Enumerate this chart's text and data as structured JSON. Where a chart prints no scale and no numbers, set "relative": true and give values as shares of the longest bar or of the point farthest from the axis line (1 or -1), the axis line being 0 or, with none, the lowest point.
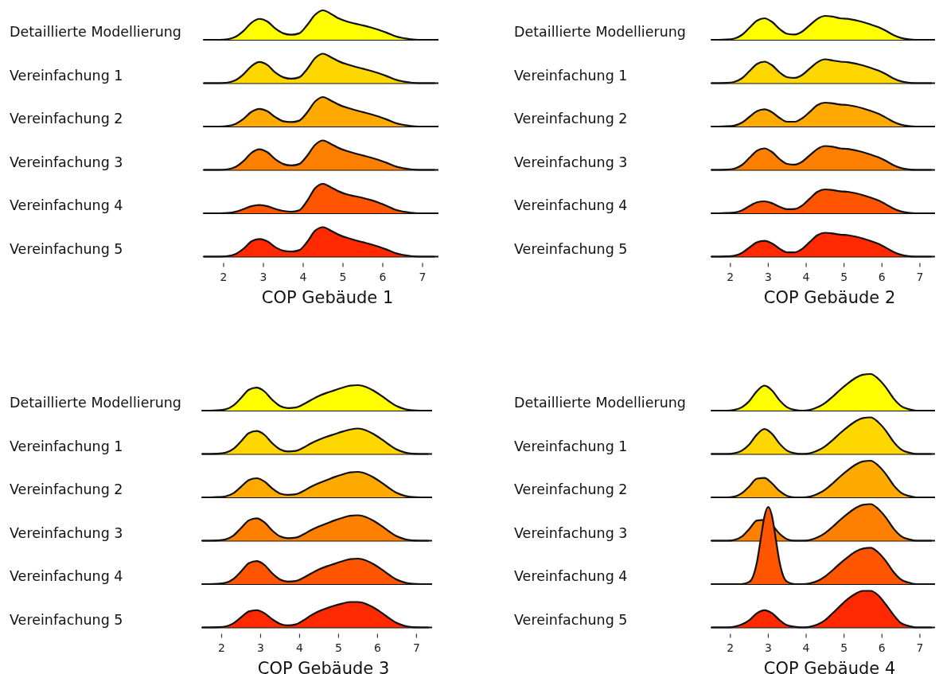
{
  "chart_data": [
    {
      "type": "area",
      "relative": true,
      "xlim": [
        1.5,
        7.4
      ],
      "x": [
        1.5,
        1.7,
        1.9,
        2.1,
        2.3,
        2.5,
        2.7,
        2.9,
        3.1,
        3.3,
        3.5,
        3.7,
        3.9,
        4.1,
        4.3,
        4.5,
        4.7,
        4.9,
        5.1,
        5.3,
        5.5,
        5.7,
        5.9,
        6.1,
        6.3,
        6.5,
        6.7,
        6.9,
        7.1,
        7.3
      ],
      "series": [
        {
          "name": "Detaillierte Modellierung",
          "color": "#ffff00",
          "values": [
            0,
            0,
            0,
            0.02,
            0.1,
            0.3,
            0.58,
            0.71,
            0.62,
            0.38,
            0.22,
            0.17,
            0.22,
            0.5,
            0.85,
            1.0,
            0.88,
            0.72,
            0.62,
            0.55,
            0.49,
            0.42,
            0.34,
            0.24,
            0.13,
            0.06,
            0.02,
            0,
            0,
            0
          ]
        }
      ]
    },
    {
      "type": "area",
      "relative": true,
      "xlim": [
        1.5,
        7.4
      ],
      "x": [
        1.5,
        1.7,
        1.9,
        2.1,
        2.3,
        2.5,
        2.7,
        2.9,
        3.1,
        3.3,
        3.5,
        3.7,
        3.9,
        4.1,
        4.3,
        4.5,
        4.7,
        4.9,
        5.1,
        5.3,
        5.5,
        5.7,
        5.9,
        6.1,
        6.3,
        6.5,
        6.7,
        6.9,
        7.1,
        7.3
      ],
      "series": [
        {
          "name": "Vereinfachung 1",
          "color": "#ffd700",
          "values": [
            0,
            0,
            0,
            0.02,
            0.1,
            0.3,
            0.58,
            0.72,
            0.62,
            0.36,
            0.2,
            0.15,
            0.2,
            0.48,
            0.85,
            1.0,
            0.88,
            0.74,
            0.64,
            0.56,
            0.49,
            0.42,
            0.34,
            0.24,
            0.13,
            0.06,
            0.02,
            0,
            0,
            0
          ]
        }
      ]
    },
    {
      "type": "area",
      "relative": true,
      "xlim": [
        1.5,
        7.4
      ],
      "x": [
        1.5,
        1.7,
        1.9,
        2.1,
        2.3,
        2.5,
        2.7,
        2.9,
        3.1,
        3.3,
        3.5,
        3.7,
        3.9,
        4.1,
        4.3,
        4.5,
        4.7,
        4.9,
        5.1,
        5.3,
        5.5,
        5.7,
        5.9,
        6.1,
        6.3,
        6.5,
        6.7,
        6.9,
        7.1,
        7.3
      ],
      "series": [
        {
          "name": "Vereinfachung 2",
          "color": "#ffaa00",
          "values": [
            0,
            0,
            0,
            0.02,
            0.09,
            0.26,
            0.5,
            0.6,
            0.52,
            0.32,
            0.18,
            0.15,
            0.2,
            0.48,
            0.85,
            1.0,
            0.88,
            0.74,
            0.64,
            0.56,
            0.49,
            0.42,
            0.34,
            0.24,
            0.13,
            0.06,
            0.02,
            0,
            0,
            0
          ]
        }
      ]
    },
    {
      "type": "area",
      "relative": true,
      "xlim": [
        1.5,
        7.4
      ],
      "x": [
        1.5,
        1.7,
        1.9,
        2.1,
        2.3,
        2.5,
        2.7,
        2.9,
        3.1,
        3.3,
        3.5,
        3.7,
        3.9,
        4.1,
        4.3,
        4.5,
        4.7,
        4.9,
        5.1,
        5.3,
        5.5,
        5.7,
        5.9,
        6.1,
        6.3,
        6.5,
        6.7,
        6.9,
        7.1,
        7.3
      ],
      "series": [
        {
          "name": "Vereinfachung 3",
          "color": "#ff8000",
          "values": [
            0,
            0,
            0,
            0.02,
            0.1,
            0.3,
            0.58,
            0.7,
            0.6,
            0.36,
            0.2,
            0.15,
            0.2,
            0.48,
            0.85,
            1.0,
            0.88,
            0.74,
            0.64,
            0.56,
            0.49,
            0.42,
            0.34,
            0.24,
            0.13,
            0.06,
            0.02,
            0,
            0,
            0
          ]
        }
      ]
    },
    {
      "type": "area",
      "relative": true,
      "xlim": [
        1.5,
        7.4
      ],
      "x": [
        1.5,
        1.7,
        1.9,
        2.1,
        2.3,
        2.5,
        2.7,
        2.9,
        3.1,
        3.3,
        3.5,
        3.7,
        3.9,
        4.1,
        4.3,
        4.5,
        4.7,
        4.9,
        5.1,
        5.3,
        5.5,
        5.7,
        5.9,
        6.1,
        6.3,
        6.5,
        6.7,
        6.9,
        7.1,
        7.3
      ],
      "series": [
        {
          "name": "Vereinfachung 4",
          "color": "#ff5500",
          "values": [
            0,
            0,
            0,
            0.01,
            0.05,
            0.14,
            0.24,
            0.28,
            0.24,
            0.15,
            0.08,
            0.05,
            0.1,
            0.42,
            0.85,
            1.0,
            0.88,
            0.74,
            0.64,
            0.58,
            0.52,
            0.45,
            0.36,
            0.25,
            0.13,
            0.06,
            0.02,
            0,
            0,
            0
          ]
        }
      ]
    },
    {
      "type": "area",
      "relative": true,
      "xlabel": "COP Gebäude 1",
      "xlim": [
        1.5,
        7.4
      ],
      "xticks": [
        2,
        3,
        4,
        5,
        6,
        7
      ],
      "x": [
        1.5,
        1.7,
        1.9,
        2.1,
        2.3,
        2.5,
        2.7,
        2.9,
        3.1,
        3.3,
        3.5,
        3.7,
        3.9,
        4.1,
        4.3,
        4.5,
        4.7,
        4.9,
        5.1,
        5.3,
        5.5,
        5.7,
        5.9,
        6.1,
        6.3,
        6.5,
        6.7,
        6.9,
        7.1,
        7.3
      ],
      "series": [
        {
          "name": "Vereinfachung 5",
          "color": "#ff2a00",
          "values": [
            0,
            0,
            0,
            0.02,
            0.09,
            0.27,
            0.52,
            0.6,
            0.52,
            0.32,
            0.2,
            0.17,
            0.22,
            0.5,
            0.88,
            1.0,
            0.88,
            0.74,
            0.64,
            0.56,
            0.49,
            0.42,
            0.34,
            0.24,
            0.13,
            0.06,
            0.02,
            0,
            0,
            0
          ]
        }
      ]
    },
    {
      "type": "area",
      "relative": true,
      "xlim": [
        1.5,
        7.4
      ],
      "x": [
        1.5,
        1.7,
        1.9,
        2.1,
        2.3,
        2.5,
        2.7,
        2.9,
        3.1,
        3.3,
        3.5,
        3.7,
        3.9,
        4.1,
        4.3,
        4.5,
        4.7,
        4.9,
        5.1,
        5.3,
        5.5,
        5.7,
        5.9,
        6.1,
        6.3,
        6.5,
        6.7,
        6.9,
        7.1,
        7.3
      ],
      "series": [
        {
          "name": "Detaillierte Modellierung",
          "color": "#ffff00",
          "values": [
            0,
            0,
            0.01,
            0.05,
            0.2,
            0.5,
            0.8,
            0.9,
            0.75,
            0.45,
            0.25,
            0.22,
            0.35,
            0.62,
            0.88,
            1.0,
            0.97,
            0.9,
            0.88,
            0.82,
            0.74,
            0.64,
            0.53,
            0.38,
            0.2,
            0.08,
            0.02,
            0,
            0,
            0
          ]
        }
      ]
    },
    {
      "type": "area",
      "relative": true,
      "xlim": [
        1.5,
        7.4
      ],
      "x": [
        1.5,
        1.7,
        1.9,
        2.1,
        2.3,
        2.5,
        2.7,
        2.9,
        3.1,
        3.3,
        3.5,
        3.7,
        3.9,
        4.1,
        4.3,
        4.5,
        4.7,
        4.9,
        5.1,
        5.3,
        5.5,
        5.7,
        5.9,
        6.1,
        6.3,
        6.5,
        6.7,
        6.9,
        7.1,
        7.3
      ],
      "series": [
        {
          "name": "Vereinfachung 1",
          "color": "#ffd700",
          "values": [
            0,
            0,
            0.01,
            0.05,
            0.2,
            0.5,
            0.8,
            0.9,
            0.75,
            0.45,
            0.25,
            0.22,
            0.35,
            0.62,
            0.88,
            1.0,
            0.95,
            0.9,
            0.88,
            0.82,
            0.74,
            0.64,
            0.53,
            0.38,
            0.2,
            0.08,
            0.02,
            0,
            0,
            0
          ]
        }
      ]
    },
    {
      "type": "area",
      "relative": true,
      "xlim": [
        1.5,
        7.4
      ],
      "x": [
        1.5,
        1.7,
        1.9,
        2.1,
        2.3,
        2.5,
        2.7,
        2.9,
        3.1,
        3.3,
        3.5,
        3.7,
        3.9,
        4.1,
        4.3,
        4.5,
        4.7,
        4.9,
        5.1,
        5.3,
        5.5,
        5.7,
        5.9,
        6.1,
        6.3,
        6.5,
        6.7,
        6.9,
        7.1,
        7.3
      ],
      "series": [
        {
          "name": "Vereinfachung 2",
          "color": "#ffaa00",
          "values": [
            0,
            0,
            0.01,
            0.04,
            0.16,
            0.4,
            0.64,
            0.72,
            0.6,
            0.36,
            0.2,
            0.2,
            0.35,
            0.62,
            0.9,
            1.0,
            0.97,
            0.92,
            0.9,
            0.84,
            0.76,
            0.66,
            0.54,
            0.38,
            0.2,
            0.08,
            0.02,
            0,
            0,
            0
          ]
        }
      ]
    },
    {
      "type": "area",
      "relative": true,
      "xlim": [
        1.5,
        7.4
      ],
      "x": [
        1.5,
        1.7,
        1.9,
        2.1,
        2.3,
        2.5,
        2.7,
        2.9,
        3.1,
        3.3,
        3.5,
        3.7,
        3.9,
        4.1,
        4.3,
        4.5,
        4.7,
        4.9,
        5.1,
        5.3,
        5.5,
        5.7,
        5.9,
        6.1,
        6.3,
        6.5,
        6.7,
        6.9,
        7.1,
        7.3
      ],
      "series": [
        {
          "name": "Vereinfachung 3",
          "color": "#ff8000",
          "values": [
            0,
            0,
            0.01,
            0.05,
            0.2,
            0.5,
            0.8,
            0.9,
            0.75,
            0.45,
            0.25,
            0.22,
            0.35,
            0.62,
            0.88,
            1.0,
            0.97,
            0.9,
            0.88,
            0.82,
            0.74,
            0.64,
            0.53,
            0.38,
            0.2,
            0.08,
            0.02,
            0,
            0,
            0
          ]
        }
      ]
    },
    {
      "type": "area",
      "relative": true,
      "xlim": [
        1.5,
        7.4
      ],
      "x": [
        1.5,
        1.7,
        1.9,
        2.1,
        2.3,
        2.5,
        2.7,
        2.9,
        3.1,
        3.3,
        3.5,
        3.7,
        3.9,
        4.1,
        4.3,
        4.5,
        4.7,
        4.9,
        5.1,
        5.3,
        5.5,
        5.7,
        5.9,
        6.1,
        6.3,
        6.5,
        6.7,
        6.9,
        7.1,
        7.3
      ],
      "series": [
        {
          "name": "Vereinfachung 4",
          "color": "#ff5500",
          "values": [
            0,
            0,
            0.01,
            0.03,
            0.12,
            0.3,
            0.46,
            0.5,
            0.42,
            0.27,
            0.17,
            0.18,
            0.33,
            0.62,
            0.9,
            1.0,
            0.97,
            0.92,
            0.9,
            0.84,
            0.76,
            0.66,
            0.54,
            0.38,
            0.2,
            0.08,
            0.02,
            0,
            0,
            0
          ]
        }
      ]
    },
    {
      "type": "area",
      "relative": true,
      "xlabel": "COP Gebäude 2",
      "xlim": [
        1.5,
        7.4
      ],
      "xticks": [
        2,
        3,
        4,
        5,
        6,
        7
      ],
      "x": [
        1.5,
        1.7,
        1.9,
        2.1,
        2.3,
        2.5,
        2.7,
        2.9,
        3.1,
        3.3,
        3.5,
        3.7,
        3.9,
        4.1,
        4.3,
        4.5,
        4.7,
        4.9,
        5.1,
        5.3,
        5.5,
        5.7,
        5.9,
        6.1,
        6.3,
        6.5,
        6.7,
        6.9,
        7.1,
        7.3
      ],
      "series": [
        {
          "name": "Vereinfachung 5",
          "color": "#ff2a00",
          "values": [
            0,
            0,
            0.01,
            0.04,
            0.15,
            0.38,
            0.6,
            0.66,
            0.55,
            0.33,
            0.18,
            0.18,
            0.33,
            0.62,
            0.9,
            1.0,
            0.97,
            0.92,
            0.9,
            0.84,
            0.76,
            0.66,
            0.54,
            0.38,
            0.2,
            0.08,
            0.02,
            0,
            0,
            0
          ]
        }
      ]
    },
    {
      "type": "area",
      "relative": true,
      "xlim": [
        1.5,
        7.4
      ],
      "x": [
        1.5,
        1.7,
        1.9,
        2.1,
        2.3,
        2.5,
        2.7,
        2.9,
        3.1,
        3.3,
        3.5,
        3.7,
        3.9,
        4.1,
        4.3,
        4.5,
        4.7,
        4.9,
        5.1,
        5.3,
        5.5,
        5.7,
        5.9,
        6.1,
        6.3,
        6.5,
        6.7,
        6.9,
        7.1,
        7.3
      ],
      "series": [
        {
          "name": "Detaillierte Modellierung",
          "color": "#ffff00",
          "values": [
            0,
            0,
            0.01,
            0.05,
            0.2,
            0.5,
            0.82,
            0.9,
            0.75,
            0.42,
            0.18,
            0.1,
            0.12,
            0.25,
            0.42,
            0.58,
            0.7,
            0.8,
            0.9,
            0.98,
            1.0,
            0.93,
            0.78,
            0.58,
            0.36,
            0.17,
            0.06,
            0.01,
            0,
            0
          ]
        }
      ]
    },
    {
      "type": "area",
      "relative": true,
      "xlim": [
        1.5,
        7.4
      ],
      "x": [
        1.5,
        1.7,
        1.9,
        2.1,
        2.3,
        2.5,
        2.7,
        2.9,
        3.1,
        3.3,
        3.5,
        3.7,
        3.9,
        4.1,
        4.3,
        4.5,
        4.7,
        4.9,
        5.1,
        5.3,
        5.5,
        5.7,
        5.9,
        6.1,
        6.3,
        6.5,
        6.7,
        6.9,
        7.1,
        7.3
      ],
      "series": [
        {
          "name": "Vereinfachung 1",
          "color": "#ffd700",
          "values": [
            0,
            0,
            0.01,
            0.05,
            0.2,
            0.5,
            0.82,
            0.9,
            0.75,
            0.42,
            0.18,
            0.1,
            0.12,
            0.25,
            0.42,
            0.56,
            0.68,
            0.78,
            0.88,
            0.96,
            1.0,
            0.93,
            0.78,
            0.58,
            0.36,
            0.17,
            0.06,
            0.01,
            0,
            0
          ]
        }
      ]
    },
    {
      "type": "area",
      "relative": true,
      "xlim": [
        1.5,
        7.4
      ],
      "x": [
        1.5,
        1.7,
        1.9,
        2.1,
        2.3,
        2.5,
        2.7,
        2.9,
        3.1,
        3.3,
        3.5,
        3.7,
        3.9,
        4.1,
        4.3,
        4.5,
        4.7,
        4.9,
        5.1,
        5.3,
        5.5,
        5.7,
        5.9,
        6.1,
        6.3,
        6.5,
        6.7,
        6.9,
        7.1,
        7.3
      ],
      "series": [
        {
          "name": "Vereinfachung 2",
          "color": "#ffaa00",
          "values": [
            0,
            0,
            0.01,
            0.04,
            0.16,
            0.42,
            0.68,
            0.75,
            0.62,
            0.35,
            0.15,
            0.1,
            0.12,
            0.25,
            0.42,
            0.56,
            0.68,
            0.8,
            0.9,
            0.98,
            1.0,
            0.93,
            0.78,
            0.58,
            0.36,
            0.17,
            0.06,
            0.01,
            0,
            0
          ]
        }
      ]
    },
    {
      "type": "area",
      "relative": true,
      "xlim": [
        1.5,
        7.4
      ],
      "x": [
        1.5,
        1.7,
        1.9,
        2.1,
        2.3,
        2.5,
        2.7,
        2.9,
        3.1,
        3.3,
        3.5,
        3.7,
        3.9,
        4.1,
        4.3,
        4.5,
        4.7,
        4.9,
        5.1,
        5.3,
        5.5,
        5.7,
        5.9,
        6.1,
        6.3,
        6.5,
        6.7,
        6.9,
        7.1,
        7.3
      ],
      "series": [
        {
          "name": "Vereinfachung 3",
          "color": "#ff8000",
          "values": [
            0,
            0,
            0.01,
            0.05,
            0.2,
            0.5,
            0.8,
            0.88,
            0.72,
            0.4,
            0.17,
            0.1,
            0.12,
            0.25,
            0.42,
            0.56,
            0.68,
            0.8,
            0.9,
            0.98,
            1.0,
            0.93,
            0.78,
            0.58,
            0.36,
            0.17,
            0.06,
            0.01,
            0,
            0
          ]
        }
      ]
    },
    {
      "type": "area",
      "relative": true,
      "xlim": [
        1.5,
        7.4
      ],
      "x": [
        1.5,
        1.7,
        1.9,
        2.1,
        2.3,
        2.5,
        2.7,
        2.9,
        3.1,
        3.3,
        3.5,
        3.7,
        3.9,
        4.1,
        4.3,
        4.5,
        4.7,
        4.9,
        5.1,
        5.3,
        5.5,
        5.7,
        5.9,
        6.1,
        6.3,
        6.5,
        6.7,
        6.9,
        7.1,
        7.3
      ],
      "series": [
        {
          "name": "Vereinfachung 4",
          "color": "#ff5500",
          "values": [
            0,
            0,
            0.01,
            0.05,
            0.2,
            0.5,
            0.82,
            0.9,
            0.75,
            0.42,
            0.18,
            0.1,
            0.12,
            0.25,
            0.42,
            0.58,
            0.7,
            0.8,
            0.9,
            0.98,
            1.0,
            0.93,
            0.78,
            0.58,
            0.36,
            0.17,
            0.06,
            0.01,
            0,
            0
          ]
        }
      ]
    },
    {
      "type": "area",
      "relative": true,
      "xlabel": "COP Gebäude 3",
      "xlim": [
        1.5,
        7.4
      ],
      "xticks": [
        2,
        3,
        4,
        5,
        6,
        7
      ],
      "x": [
        1.5,
        1.7,
        1.9,
        2.1,
        2.3,
        2.5,
        2.7,
        2.9,
        3.1,
        3.3,
        3.5,
        3.7,
        3.9,
        4.1,
        4.3,
        4.5,
        4.7,
        4.9,
        5.1,
        5.3,
        5.5,
        5.7,
        5.9,
        6.1,
        6.3,
        6.5,
        6.7,
        6.9,
        7.1,
        7.3
      ],
      "series": [
        {
          "name": "Vereinfachung 5",
          "color": "#ff2a00",
          "values": [
            0,
            0,
            0.01,
            0.04,
            0.16,
            0.4,
            0.63,
            0.68,
            0.56,
            0.32,
            0.14,
            0.08,
            0.12,
            0.28,
            0.48,
            0.64,
            0.76,
            0.86,
            0.94,
            1.0,
            1.0,
            0.93,
            0.78,
            0.58,
            0.36,
            0.17,
            0.06,
            0.01,
            0,
            0
          ]
        }
      ]
    },
    {
      "type": "area",
      "relative": true,
      "xlim": [
        1.5,
        7.4
      ],
      "x": [
        1.5,
        1.7,
        1.9,
        2.1,
        2.3,
        2.5,
        2.7,
        2.9,
        3.1,
        3.3,
        3.5,
        3.7,
        3.9,
        4.1,
        4.3,
        4.5,
        4.7,
        4.9,
        5.1,
        5.3,
        5.5,
        5.7,
        5.9,
        6.1,
        6.3,
        6.5,
        6.7,
        6.9,
        7.1,
        7.3
      ],
      "series": [
        {
          "name": "Detaillierte Modellierung",
          "color": "#ffff00",
          "values": [
            0,
            0,
            0,
            0.02,
            0.09,
            0.26,
            0.53,
            0.68,
            0.55,
            0.28,
            0.09,
            0.02,
            0,
            0.02,
            0.09,
            0.21,
            0.38,
            0.57,
            0.74,
            0.89,
            0.98,
            1.0,
            0.87,
            0.64,
            0.34,
            0.13,
            0.04,
            0,
            0,
            0
          ]
        }
      ]
    },
    {
      "type": "area",
      "relative": true,
      "xlim": [
        1.5,
        7.4
      ],
      "x": [
        1.5,
        1.7,
        1.9,
        2.1,
        2.3,
        2.5,
        2.7,
        2.9,
        3.1,
        3.3,
        3.5,
        3.7,
        3.9,
        4.1,
        4.3,
        4.5,
        4.7,
        4.9,
        5.1,
        5.3,
        5.5,
        5.7,
        5.9,
        6.1,
        6.3,
        6.5,
        6.7,
        6.9,
        7.1,
        7.3
      ],
      "series": [
        {
          "name": "Vereinfachung 1",
          "color": "#ffd700",
          "values": [
            0,
            0,
            0,
            0.02,
            0.09,
            0.26,
            0.53,
            0.68,
            0.55,
            0.28,
            0.09,
            0.02,
            0,
            0.02,
            0.09,
            0.21,
            0.38,
            0.57,
            0.74,
            0.89,
            0.98,
            1.0,
            0.87,
            0.64,
            0.34,
            0.13,
            0.04,
            0,
            0,
            0
          ]
        }
      ]
    },
    {
      "type": "area",
      "relative": true,
      "xlim": [
        1.5,
        7.4
      ],
      "x": [
        1.5,
        1.7,
        1.9,
        2.1,
        2.3,
        2.5,
        2.7,
        2.9,
        3.1,
        3.3,
        3.5,
        3.7,
        3.9,
        4.1,
        4.3,
        4.5,
        4.7,
        4.9,
        5.1,
        5.3,
        5.5,
        5.7,
        5.9,
        6.1,
        6.3,
        6.5,
        6.7,
        6.9,
        7.1,
        7.3
      ],
      "series": [
        {
          "name": "Vereinfachung 2",
          "color": "#ffaa00",
          "values": [
            0,
            0,
            0,
            0.02,
            0.11,
            0.3,
            0.51,
            0.53,
            0.38,
            0.17,
            0.04,
            0,
            0,
            0.02,
            0.09,
            0.21,
            0.38,
            0.57,
            0.74,
            0.89,
            0.98,
            1.0,
            0.87,
            0.64,
            0.34,
            0.13,
            0.04,
            0,
            0,
            0
          ]
        }
      ]
    },
    {
      "type": "area",
      "relative": true,
      "xlim": [
        1.5,
        7.4
      ],
      "x": [
        1.5,
        1.7,
        1.9,
        2.1,
        2.3,
        2.5,
        2.7,
        2.9,
        3.1,
        3.3,
        3.5,
        3.7,
        3.9,
        4.1,
        4.3,
        4.5,
        4.7,
        4.9,
        5.1,
        5.3,
        5.5,
        5.7,
        5.9,
        6.1,
        6.3,
        6.5,
        6.7,
        6.9,
        7.1,
        7.3
      ],
      "series": [
        {
          "name": "Vereinfachung 3",
          "color": "#ff8000",
          "values": [
            0,
            0,
            0,
            0.02,
            0.11,
            0.32,
            0.55,
            0.57,
            0.43,
            0.19,
            0.04,
            0,
            0,
            0.02,
            0.09,
            0.21,
            0.38,
            0.57,
            0.74,
            0.89,
            0.98,
            1.0,
            0.87,
            0.64,
            0.34,
            0.13,
            0.04,
            0,
            0,
            0
          ]
        }
      ]
    },
    {
      "type": "area",
      "relative": true,
      "xlim": [
        1.5,
        7.4
      ],
      "x": [
        1.5,
        2.3,
        2.5,
        2.6,
        2.7,
        2.8,
        2.9,
        3.0,
        3.1,
        3.2,
        3.3,
        3.4,
        3.5,
        3.7,
        3.9,
        4.1,
        4.3,
        4.5,
        4.7,
        4.9,
        5.1,
        5.3,
        5.5,
        5.7,
        5.9,
        6.1,
        6.3,
        6.5,
        6.7,
        6.9,
        7.3
      ],
      "series": [
        {
          "name": "Vereinfachung 4",
          "color": "#ff5500",
          "values": [
            0,
            0,
            0.03,
            0.1,
            0.28,
            0.58,
            0.88,
            1.0,
            0.88,
            0.58,
            0.28,
            0.1,
            0.03,
            0,
            0,
            0.01,
            0.04,
            0.1,
            0.18,
            0.27,
            0.35,
            0.42,
            0.46,
            0.47,
            0.41,
            0.3,
            0.16,
            0.06,
            0.02,
            0,
            0
          ]
        }
      ]
    },
    {
      "type": "area",
      "relative": true,
      "xlabel": "COP Gebäude 4",
      "xlim": [
        1.5,
        7.4
      ],
      "xticks": [
        2,
        3,
        4,
        5,
        6,
        7
      ],
      "x": [
        1.5,
        1.7,
        1.9,
        2.1,
        2.3,
        2.5,
        2.7,
        2.9,
        3.1,
        3.3,
        3.5,
        3.7,
        3.9,
        4.1,
        4.3,
        4.5,
        4.7,
        4.9,
        5.1,
        5.3,
        5.5,
        5.7,
        5.9,
        6.1,
        6.3,
        6.5,
        6.7,
        6.9,
        7.1,
        7.3
      ],
      "series": [
        {
          "name": "Vereinfachung 5",
          "color": "#ff2a00",
          "values": [
            0,
            0,
            0,
            0.02,
            0.08,
            0.2,
            0.39,
            0.47,
            0.39,
            0.2,
            0.06,
            0.02,
            0,
            0.02,
            0.08,
            0.2,
            0.39,
            0.59,
            0.78,
            0.92,
            1.0,
            1.0,
            0.88,
            0.63,
            0.35,
            0.12,
            0.04,
            0,
            0,
            0
          ]
        }
      ]
    }
  ]
}
